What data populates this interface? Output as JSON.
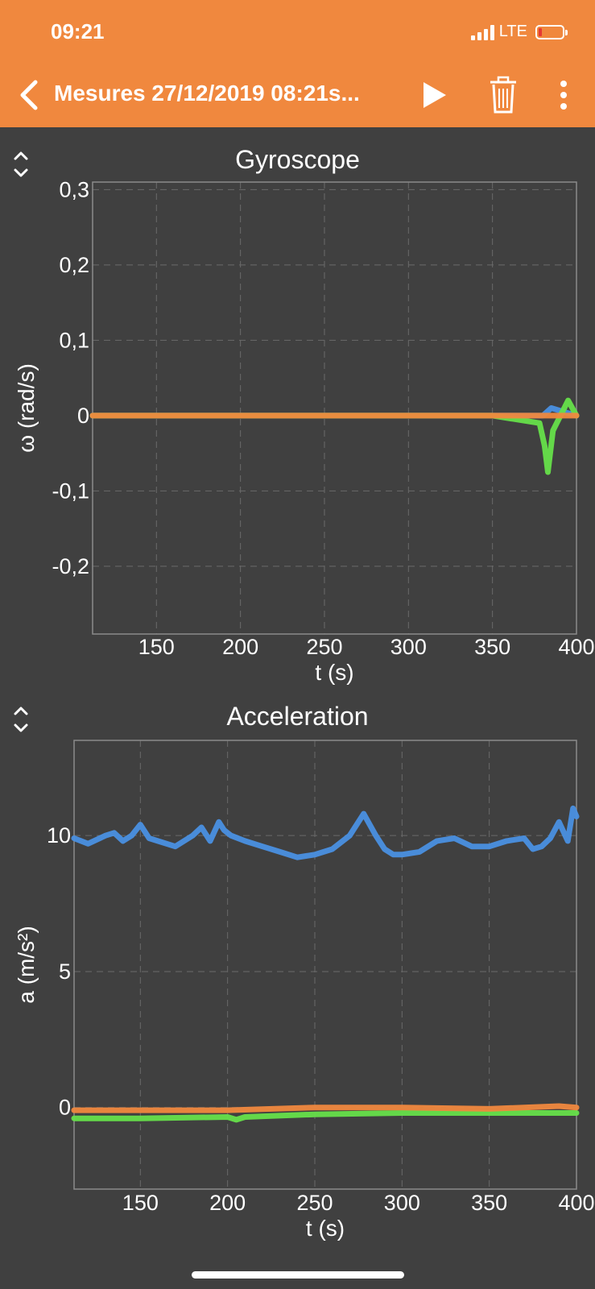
{
  "status_bar": {
    "time": "09:21",
    "network": "LTE"
  },
  "nav": {
    "title": "Mesures 27/12/2019 08:21s..."
  },
  "icons": {
    "back": "chevron-left-icon",
    "play": "play-icon",
    "delete": "trash-icon",
    "more": "more-vertical-icon",
    "resize": "expand-collapse-icon"
  },
  "colors": {
    "header": "#f0883e",
    "background": "#404040",
    "series_x": "#4a90e2",
    "series_y": "#66e04a",
    "series_z": "#f0883e"
  },
  "chart_data": [
    {
      "type": "line",
      "title": "Gyroscope",
      "xlabel": "t (s)",
      "ylabel": "ω (rad/s)",
      "xlim": [
        112,
        400
      ],
      "ylim": [
        -0.29,
        0.31
      ],
      "xticks": [
        150,
        200,
        250,
        300,
        350,
        400
      ],
      "xtick_labels": [
        "150",
        "200",
        "250",
        "300",
        "350",
        "400"
      ],
      "yticks": [
        0.3,
        0.2,
        0.1,
        0,
        -0.1,
        -0.2
      ],
      "ytick_labels": [
        "0,3",
        "0,2",
        "0,1",
        "0",
        "-0,1",
        "-0,2"
      ],
      "grid": true,
      "series": [
        {
          "color": "#4a90e2",
          "x": [
            112,
            150,
            200,
            250,
            300,
            350,
            380,
            385,
            400
          ],
          "y": [
            0.0,
            0.0,
            0.0,
            0.0,
            0.0,
            0.0,
            0.0,
            0.01,
            0.0
          ]
        },
        {
          "color": "#66e04a",
          "x": [
            112,
            150,
            200,
            250,
            300,
            350,
            378,
            381,
            383,
            386,
            395,
            400
          ],
          "y": [
            0.0,
            0.0,
            0.0,
            0.0,
            0.0,
            0.0,
            -0.01,
            -0.04,
            -0.075,
            -0.02,
            0.02,
            0.0
          ]
        },
        {
          "color": "#f0883e",
          "x": [
            112,
            150,
            200,
            250,
            300,
            350,
            400
          ],
          "y": [
            0.0,
            0.0,
            0.0,
            0.0,
            0.0,
            0.0,
            0.0
          ]
        }
      ]
    },
    {
      "type": "line",
      "title": "Acceleration",
      "xlabel": "t (s)",
      "ylabel": "a (m/s²)",
      "xlim": [
        112,
        400
      ],
      "ylim": [
        -3,
        13.5
      ],
      "xticks": [
        150,
        200,
        250,
        300,
        350,
        400
      ],
      "xtick_labels": [
        "150",
        "200",
        "250",
        "300",
        "350",
        "400"
      ],
      "yticks": [
        10,
        5,
        0
      ],
      "ytick_labels": [
        "10",
        "5",
        "0"
      ],
      "grid": true,
      "series": [
        {
          "color": "#4a90e2",
          "x": [
            112,
            120,
            130,
            135,
            140,
            145,
            150,
            155,
            160,
            170,
            180,
            185,
            190,
            195,
            198,
            202,
            210,
            220,
            230,
            240,
            250,
            260,
            270,
            278,
            285,
            290,
            295,
            300,
            310,
            320,
            330,
            340,
            350,
            360,
            370,
            375,
            380,
            385,
            390,
            395,
            398,
            400
          ],
          "y": [
            9.9,
            9.7,
            10.0,
            10.1,
            9.8,
            10.0,
            10.4,
            9.9,
            9.8,
            9.6,
            10.0,
            10.3,
            9.8,
            10.5,
            10.2,
            10.0,
            9.8,
            9.6,
            9.4,
            9.2,
            9.3,
            9.5,
            10.0,
            10.8,
            10.0,
            9.5,
            9.3,
            9.3,
            9.4,
            9.8,
            9.9,
            9.6,
            9.6,
            9.8,
            9.9,
            9.5,
            9.6,
            9.9,
            10.5,
            9.8,
            11.0,
            10.7
          ]
        },
        {
          "color": "#66e04a",
          "x": [
            112,
            150,
            200,
            205,
            210,
            250,
            300,
            350,
            400
          ],
          "y": [
            -0.4,
            -0.4,
            -0.35,
            -0.45,
            -0.35,
            -0.25,
            -0.2,
            -0.2,
            -0.2
          ]
        },
        {
          "color": "#f0883e",
          "x": [
            112,
            150,
            200,
            250,
            300,
            350,
            390,
            400
          ],
          "y": [
            -0.1,
            -0.1,
            -0.1,
            0.0,
            0.0,
            -0.05,
            0.05,
            0.0
          ]
        }
      ]
    }
  ]
}
